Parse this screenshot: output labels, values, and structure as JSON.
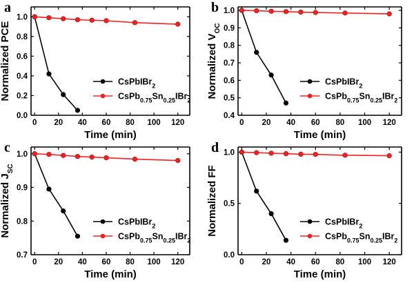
{
  "chart_data": [
    {
      "panel": "a",
      "type": "line",
      "xlabel": "Time (min)",
      "ylabel": [
        {
          "t": "Normalized PCE",
          "s": "n"
        }
      ],
      "ylim": [
        0.0,
        1.1
      ],
      "yticks": [
        "0.0",
        "0.2",
        "0.4",
        "0.6",
        "0.8",
        "1.0"
      ],
      "xlim": [
        -3,
        130
      ],
      "xticks": [
        0,
        20,
        40,
        60,
        80,
        100,
        120
      ],
      "series": [
        {
          "name": "CsPbIBr2",
          "color": "#000000",
          "x": [
            0,
            12,
            24,
            36
          ],
          "y": [
            1.0,
            0.42,
            0.21,
            0.05
          ]
        },
        {
          "name": "CsPb0.75Sn0.25IBr2",
          "color": "#ee2222",
          "x": [
            0,
            12,
            24,
            36,
            48,
            60,
            84,
            120
          ],
          "y": [
            1.0,
            0.99,
            0.98,
            0.97,
            0.965,
            0.96,
            0.94,
            0.925
          ]
        }
      ]
    },
    {
      "panel": "b",
      "type": "line",
      "xlabel": "Time (min)",
      "ylabel": [
        {
          "t": "Normalized V",
          "s": "n"
        },
        {
          "t": "OC",
          "s": "sub"
        }
      ],
      "ylim": [
        0.4,
        1.02
      ],
      "yticks": [
        "0.4",
        "0.5",
        "0.6",
        "0.7",
        "0.8",
        "0.9",
        "1.0"
      ],
      "xlim": [
        -3,
        130
      ],
      "xticks": [
        0,
        20,
        40,
        60,
        80,
        100,
        120
      ],
      "series": [
        {
          "name": "CsPbIBr2",
          "color": "#000000",
          "x": [
            0,
            12,
            24,
            36
          ],
          "y": [
            1.0,
            0.76,
            0.63,
            0.47
          ]
        },
        {
          "name": "CsPb0.75Sn0.25IBr2",
          "color": "#ee2222",
          "x": [
            0,
            12,
            24,
            36,
            48,
            60,
            84,
            120
          ],
          "y": [
            1.0,
            0.998,
            0.995,
            0.993,
            0.99,
            0.988,
            0.985,
            0.98
          ]
        }
      ]
    },
    {
      "panel": "c",
      "type": "line",
      "xlabel": "Time (min)",
      "ylabel": [
        {
          "t": "Normalized J",
          "s": "n"
        },
        {
          "t": "SC",
          "s": "sub"
        }
      ],
      "ylim": [
        0.7,
        1.02
      ],
      "yticks": [
        "0.7",
        "0.8",
        "0.9",
        "1.0"
      ],
      "xlim": [
        -3,
        130
      ],
      "xticks": [
        0,
        20,
        40,
        60,
        80,
        100,
        120
      ],
      "series": [
        {
          "name": "CsPbIBr2",
          "color": "#000000",
          "x": [
            0,
            12,
            24,
            36
          ],
          "y": [
            1.0,
            0.895,
            0.83,
            0.755
          ]
        },
        {
          "name": "CsPb0.75Sn0.25IBr2",
          "color": "#ee2222",
          "x": [
            0,
            12,
            24,
            36,
            48,
            60,
            84,
            120
          ],
          "y": [
            1.0,
            0.998,
            0.995,
            0.992,
            0.99,
            0.988,
            0.984,
            0.98
          ]
        }
      ]
    },
    {
      "panel": "d",
      "type": "line",
      "xlabel": "Time (min)",
      "ylabel": [
        {
          "t": "Normalized FF",
          "s": "n"
        }
      ],
      "ylim": [
        0.0,
        1.05
      ],
      "yticks": [
        "0.0",
        "0.5",
        "1.0"
      ],
      "xlim": [
        -3,
        130
      ],
      "xticks": [
        0,
        20,
        40,
        60,
        80,
        100,
        120
      ],
      "series": [
        {
          "name": "CsPbIBr2",
          "color": "#000000",
          "x": [
            0,
            12,
            24,
            36
          ],
          "y": [
            1.0,
            0.62,
            0.4,
            0.14
          ]
        },
        {
          "name": "CsPb0.75Sn0.25IBr2",
          "color": "#ee2222",
          "x": [
            0,
            12,
            24,
            36,
            48,
            60,
            84,
            120
          ],
          "y": [
            1.0,
            0.995,
            0.99,
            0.985,
            0.98,
            0.978,
            0.97,
            0.965
          ]
        }
      ]
    }
  ],
  "legend": [
    {
      "parts": [
        {
          "t": "CsPbIBr",
          "s": "n"
        },
        {
          "t": "2",
          "s": "sub"
        }
      ]
    },
    {
      "parts": [
        {
          "t": "CsPb",
          "s": "n"
        },
        {
          "t": "0.75",
          "s": "sub"
        },
        {
          "t": "Sn",
          "s": "n"
        },
        {
          "t": "0.25",
          "s": "sub"
        },
        {
          "t": "IBr",
          "s": "n"
        },
        {
          "t": "2",
          "s": "sub"
        }
      ]
    }
  ]
}
